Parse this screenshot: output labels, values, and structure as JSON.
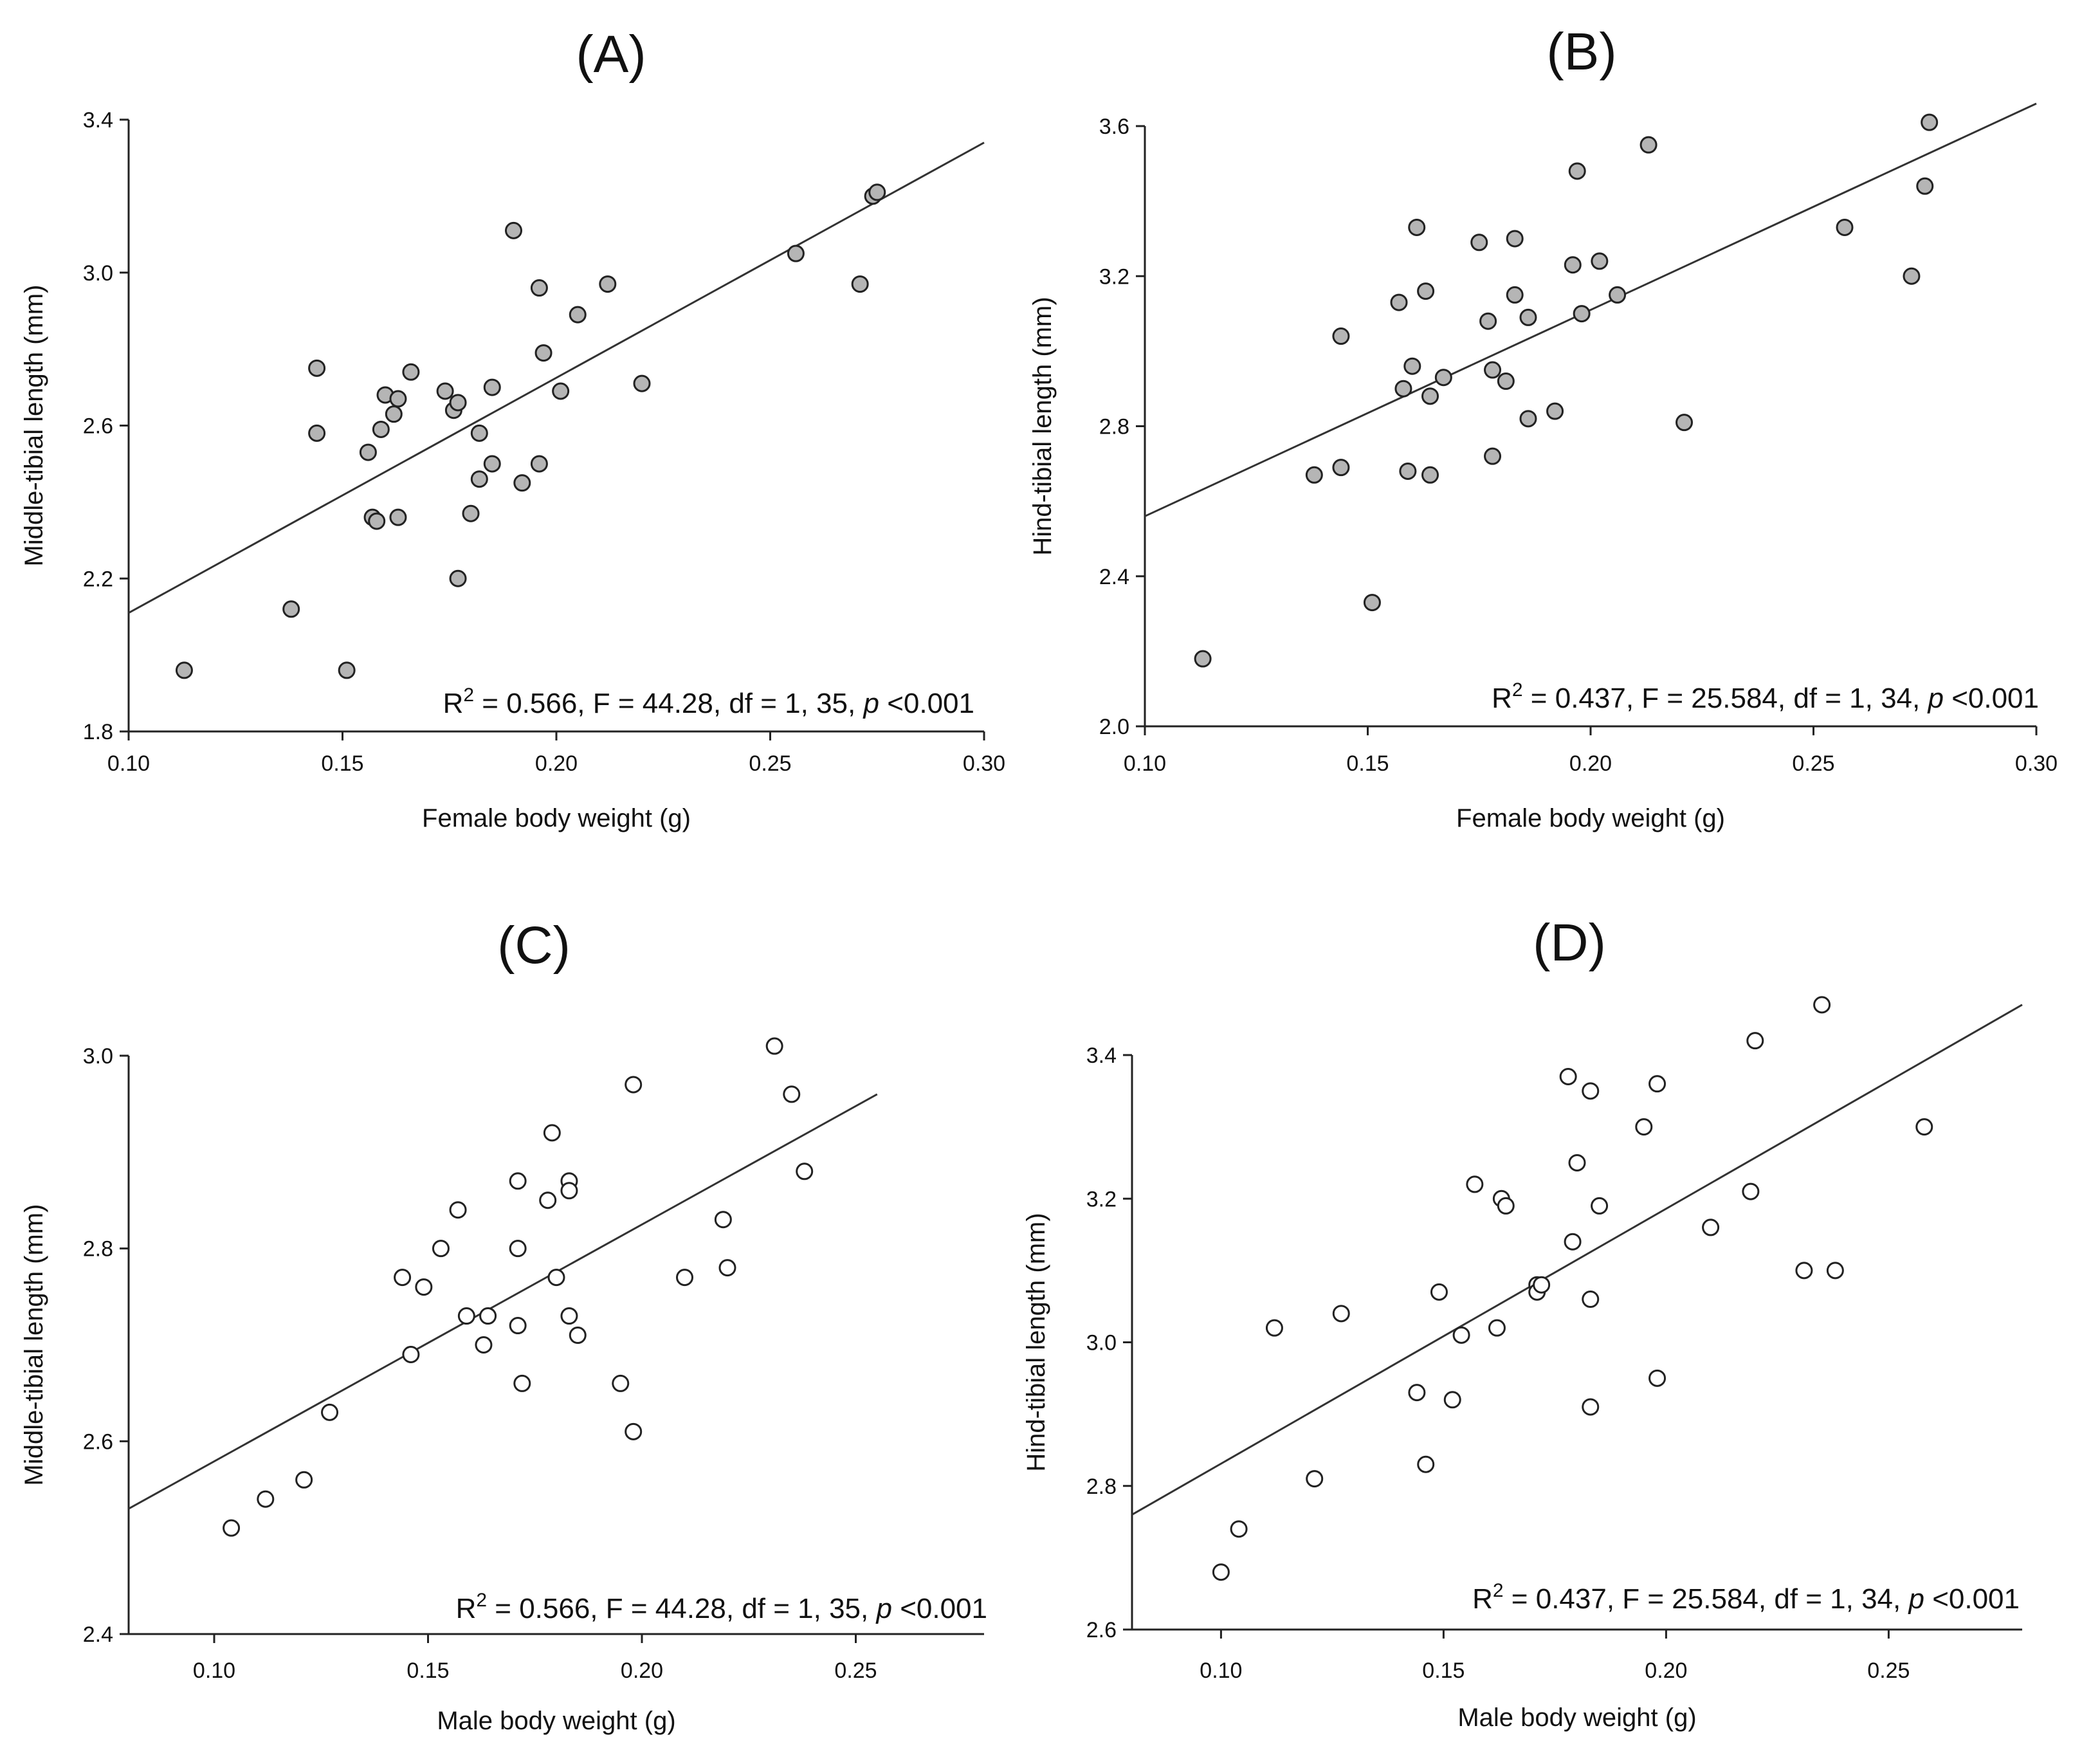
{
  "chart_data": [
    {
      "type": "scatter",
      "title": "(A)",
      "xlabel": "Female body weight (g)",
      "ylabel": "Middle-tibial length (mm)",
      "xlim": [
        0.1,
        0.3
      ],
      "ylim": [
        1.8,
        3.4
      ],
      "xticks": [
        "0.10",
        "0.15",
        "0.20",
        "0.25",
        "0.30"
      ],
      "yticks": [
        "1.8",
        "2.2",
        "2.6",
        "3.0",
        "3.4"
      ],
      "grid": false,
      "marker": "filled-gray",
      "fit_line": {
        "x": [
          0.1,
          0.3
        ],
        "y": [
          2.11,
          3.34
        ]
      },
      "stats": {
        "r2": "R2 = 0.566, F = 44.28, df = 1, 35, ",
        "r": "R",
        "sup": "2",
        "rest": " = 0.566, F = 44.28, df = 1, 35, ",
        "p": "p",
        "tail": " <0.001"
      },
      "points": [
        [
          0.113,
          1.96
        ],
        [
          0.138,
          2.12
        ],
        [
          0.144,
          2.75
        ],
        [
          0.144,
          2.58
        ],
        [
          0.151,
          1.96
        ],
        [
          0.156,
          2.53
        ],
        [
          0.157,
          2.36
        ],
        [
          0.158,
          2.35
        ],
        [
          0.159,
          2.59
        ],
        [
          0.16,
          2.68
        ],
        [
          0.162,
          2.63
        ],
        [
          0.163,
          2.67
        ],
        [
          0.163,
          2.36
        ],
        [
          0.166,
          2.74
        ],
        [
          0.174,
          2.69
        ],
        [
          0.176,
          2.64
        ],
        [
          0.177,
          2.66
        ],
        [
          0.177,
          2.2
        ],
        [
          0.18,
          2.37
        ],
        [
          0.182,
          2.58
        ],
        [
          0.182,
          2.46
        ],
        [
          0.185,
          2.7
        ],
        [
          0.185,
          2.5
        ],
        [
          0.19,
          3.11
        ],
        [
          0.192,
          2.45
        ],
        [
          0.196,
          2.96
        ],
        [
          0.196,
          2.5
        ],
        [
          0.197,
          2.79
        ],
        [
          0.201,
          2.69
        ],
        [
          0.205,
          2.89
        ],
        [
          0.212,
          2.97
        ],
        [
          0.22,
          2.71
        ],
        [
          0.256,
          3.05
        ],
        [
          0.271,
          2.97
        ],
        [
          0.274,
          3.2
        ],
        [
          0.275,
          3.21
        ]
      ]
    },
    {
      "type": "scatter",
      "title": "(B)",
      "xlabel": "Female body weight (g)",
      "ylabel": "Hind-tibial length (mm)",
      "xlim": [
        0.1,
        0.3
      ],
      "ylim": [
        2.0,
        3.6
      ],
      "xticks": [
        "0.10",
        "0.15",
        "0.20",
        "0.25",
        "0.30"
      ],
      "yticks": [
        "2.0",
        "2.4",
        "2.8",
        "3.2",
        "3.6"
      ],
      "grid": false,
      "marker": "filled-gray",
      "fit_line": {
        "x": [
          0.1,
          0.3
        ],
        "y": [
          2.56,
          3.66
        ]
      },
      "stats": {
        "r": "R",
        "sup": "2",
        "rest": " = 0.437, F = 25.584, df = 1, 34, ",
        "p": "p",
        "tail": " <0.001"
      },
      "points": [
        [
          0.113,
          2.18
        ],
        [
          0.138,
          2.67
        ],
        [
          0.144,
          2.69
        ],
        [
          0.144,
          3.04
        ],
        [
          0.151,
          2.33
        ],
        [
          0.157,
          3.13
        ],
        [
          0.158,
          2.9
        ],
        [
          0.159,
          2.68
        ],
        [
          0.16,
          2.96
        ],
        [
          0.161,
          3.33
        ],
        [
          0.163,
          3.16
        ],
        [
          0.164,
          2.88
        ],
        [
          0.164,
          2.67
        ],
        [
          0.167,
          2.93
        ],
        [
          0.175,
          3.29
        ],
        [
          0.177,
          3.08
        ],
        [
          0.178,
          2.95
        ],
        [
          0.178,
          2.72
        ],
        [
          0.181,
          2.92
        ],
        [
          0.183,
          3.15
        ],
        [
          0.183,
          3.3
        ],
        [
          0.186,
          3.09
        ],
        [
          0.186,
          2.82
        ],
        [
          0.192,
          2.84
        ],
        [
          0.196,
          3.23
        ],
        [
          0.197,
          3.48
        ],
        [
          0.198,
          3.1
        ],
        [
          0.202,
          3.24
        ],
        [
          0.206,
          3.15
        ],
        [
          0.213,
          3.55
        ],
        [
          0.221,
          2.81
        ],
        [
          0.257,
          3.33
        ],
        [
          0.272,
          3.2
        ],
        [
          0.275,
          3.44
        ],
        [
          0.276,
          3.61
        ]
      ]
    },
    {
      "type": "scatter",
      "title": "(C)",
      "xlabel": "Male body weight (g)",
      "ylabel": "Middle-tibial length (mm)",
      "xlim": [
        0.08,
        0.28
      ],
      "ylim": [
        2.4,
        3.0
      ],
      "xticks": [
        "0.10",
        "0.15",
        "0.20",
        "0.25"
      ],
      "yticks": [
        "2.4",
        "2.6",
        "2.8",
        "3.0"
      ],
      "grid": false,
      "marker": "open",
      "fit_line": {
        "x": [
          0.08,
          0.255
        ],
        "y": [
          2.53,
          2.96
        ]
      },
      "stats": {
        "r": "R",
        "sup": "2",
        "rest": " = 0.566, F = 44.28, df = 1, 35, ",
        "p": "p",
        "tail": " <0.001"
      },
      "points": [
        [
          0.104,
          2.51
        ],
        [
          0.112,
          2.54
        ],
        [
          0.121,
          2.56
        ],
        [
          0.127,
          2.63
        ],
        [
          0.144,
          2.77
        ],
        [
          0.146,
          2.69
        ],
        [
          0.149,
          2.76
        ],
        [
          0.153,
          2.8
        ],
        [
          0.157,
          2.84
        ],
        [
          0.159,
          2.73
        ],
        [
          0.163,
          2.7
        ],
        [
          0.164,
          2.73
        ],
        [
          0.171,
          2.87
        ],
        [
          0.171,
          2.8
        ],
        [
          0.171,
          2.72
        ],
        [
          0.172,
          2.66
        ],
        [
          0.178,
          2.85
        ],
        [
          0.179,
          2.92
        ],
        [
          0.18,
          2.77
        ],
        [
          0.183,
          2.87
        ],
        [
          0.183,
          2.86
        ],
        [
          0.183,
          2.73
        ],
        [
          0.185,
          2.71
        ],
        [
          0.195,
          2.66
        ],
        [
          0.198,
          2.97
        ],
        [
          0.198,
          2.61
        ],
        [
          0.21,
          2.77
        ],
        [
          0.219,
          2.83
        ],
        [
          0.22,
          2.78
        ],
        [
          0.231,
          3.01
        ],
        [
          0.235,
          2.96
        ],
        [
          0.238,
          2.88
        ]
      ]
    },
    {
      "type": "scatter",
      "title": "(D)",
      "xlabel": "Male body weight (g)",
      "ylabel": "Hind-tibial length (mm)",
      "xlim": [
        0.08,
        0.28
      ],
      "ylim": [
        2.6,
        3.4
      ],
      "xticks": [
        "0.10",
        "0.15",
        "0.20",
        "0.25"
      ],
      "yticks": [
        "2.6",
        "2.8",
        "3.0",
        "3.2",
        "3.4"
      ],
      "grid": false,
      "marker": "open",
      "fit_line": {
        "x": [
          0.08,
          0.28
        ],
        "y": [
          2.76,
          3.47
        ]
      },
      "stats": {
        "r": "R",
        "sup": "2",
        "rest": " = 0.437, F = 25.584, df = 1, 34, ",
        "p": "p",
        "tail": " <0.001"
      },
      "points": [
        [
          0.1,
          2.68
        ],
        [
          0.104,
          2.74
        ],
        [
          0.112,
          3.02
        ],
        [
          0.121,
          2.81
        ],
        [
          0.127,
          3.04
        ],
        [
          0.144,
          2.93
        ],
        [
          0.146,
          2.83
        ],
        [
          0.149,
          3.07
        ],
        [
          0.152,
          2.92
        ],
        [
          0.154,
          3.01
        ],
        [
          0.157,
          3.22
        ],
        [
          0.162,
          3.02
        ],
        [
          0.163,
          3.2
        ],
        [
          0.164,
          3.19
        ],
        [
          0.171,
          3.08
        ],
        [
          0.171,
          3.07
        ],
        [
          0.172,
          3.08
        ],
        [
          0.178,
          3.37
        ],
        [
          0.179,
          3.14
        ],
        [
          0.18,
          3.25
        ],
        [
          0.183,
          3.35
        ],
        [
          0.183,
          3.06
        ],
        [
          0.183,
          2.91
        ],
        [
          0.185,
          3.19
        ],
        [
          0.195,
          3.3
        ],
        [
          0.198,
          3.36
        ],
        [
          0.198,
          2.95
        ],
        [
          0.21,
          3.16
        ],
        [
          0.219,
          3.21
        ],
        [
          0.22,
          3.42
        ],
        [
          0.231,
          3.1
        ],
        [
          0.235,
          3.47
        ],
        [
          0.238,
          3.1
        ],
        [
          0.258,
          3.3
        ]
      ]
    }
  ]
}
